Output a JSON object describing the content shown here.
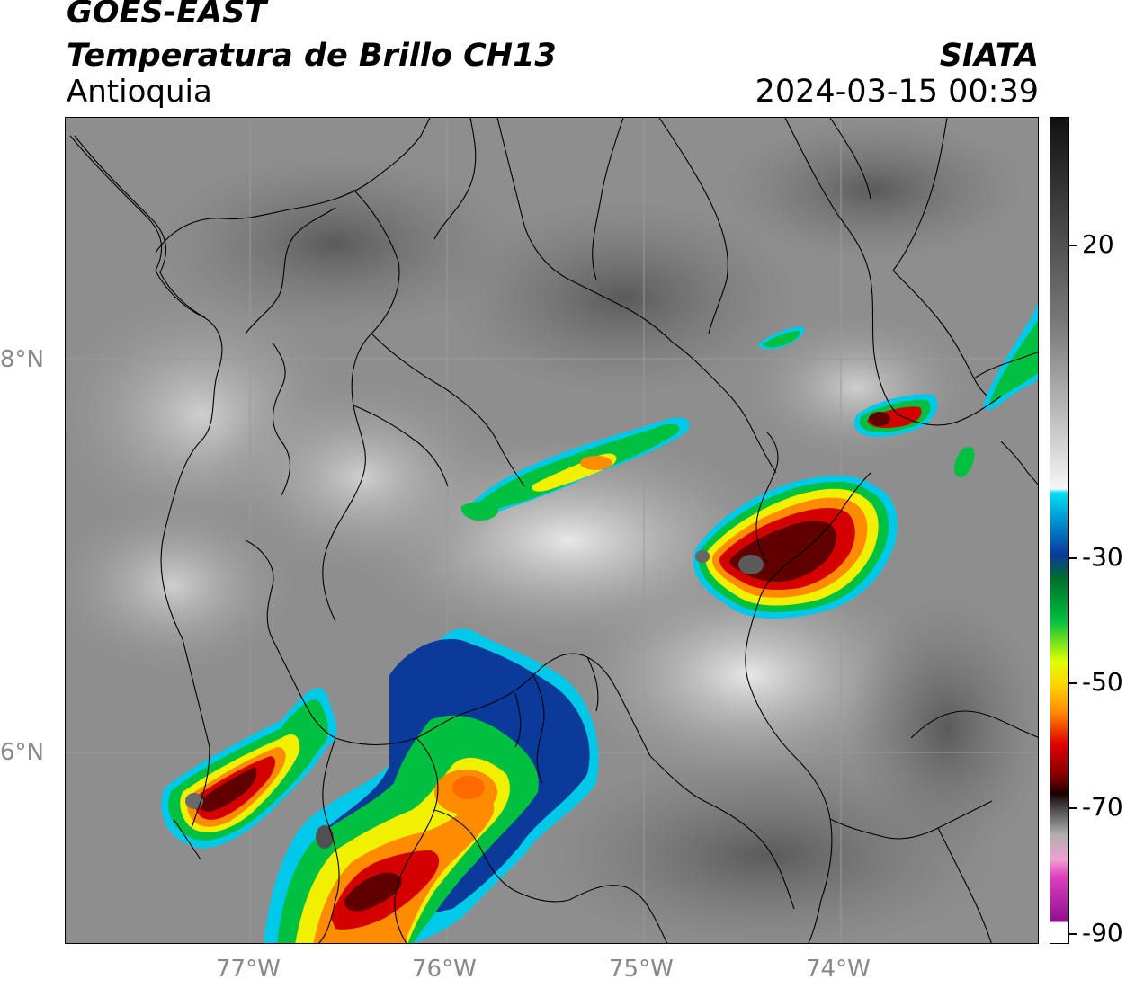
{
  "header": {
    "satellite": "GOES-EAST",
    "product": "Temperatura de Brillo CH13",
    "region": "Antioquia",
    "organization": "SIATA",
    "timestamp": "2024-03-15 00:39"
  },
  "map": {
    "lon_labels": [
      "77°W",
      "76°W",
      "75°W",
      "74°W"
    ],
    "lat_labels": [
      "8°N",
      "6°N"
    ]
  },
  "colorbar": {
    "labels": [
      "20",
      "-30",
      "-50",
      "-70",
      "-90"
    ],
    "colors": {
      "warm_gray_dark": "#5a5a5a",
      "cold_cyan": "#00c8e8",
      "blue": "#0a3a9a",
      "green": "#00c040",
      "yellow": "#f0f000",
      "orange": "#ff8c00",
      "red": "#e00000",
      "dark_red": "#600000",
      "magenta": "#b020b0"
    }
  }
}
